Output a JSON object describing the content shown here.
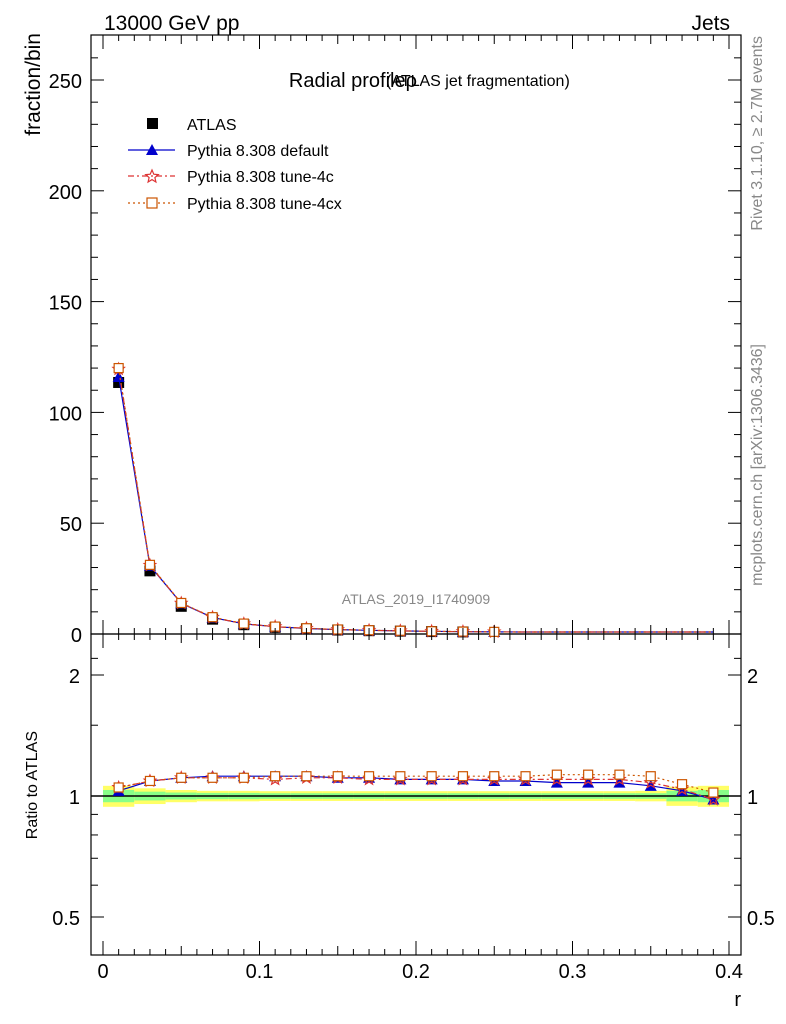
{
  "header": {
    "left": "13000 GeV pp",
    "right": "Jets"
  },
  "side": {
    "rivet": "Rivet 3.1.10, ≥ 2.7M events",
    "mcplots": "mcplots.cern.ch [arXiv:1306.3436]"
  },
  "chart_data": [
    {
      "type": "line",
      "title": "Radial profileρ",
      "subtitle": "(ATLAS jet fragmentation)",
      "watermark": "ATLAS_2019_I1740909",
      "xlabel": "",
      "ylabel": "fraction/bin",
      "xlim": [
        0,
        0.4
      ],
      "ylim": [
        0,
        270
      ],
      "yticks": [
        "0",
        "50",
        "100",
        "150",
        "200",
        "250"
      ],
      "legend_position": "top-left",
      "x": [
        0.01,
        0.03,
        0.05,
        0.07,
        0.09,
        0.11,
        0.13,
        0.15,
        0.17,
        0.19,
        0.21,
        0.23,
        0.25,
        0.27,
        0.29,
        0.31,
        0.33,
        0.35,
        0.37,
        0.39
      ],
      "series": [
        {
          "name": "ATLAS",
          "color": "#000000",
          "marker": "square-filled",
          "values": [
            113.5,
            28.5,
            12.5,
            6.7,
            4.2,
            3.0,
            2.3,
            1.8,
            1.5,
            1.3,
            1.1,
            0.95,
            0.85,
            0.75,
            0.67,
            0.6,
            0.55,
            0.5,
            0.45,
            0.4
          ]
        },
        {
          "name": "Pythia 8.308 default",
          "color": "#0000cc",
          "marker": "triangle",
          "dash": "",
          "values": [
            116,
            30.8,
            13.8,
            7.4,
            4.6,
            3.3,
            2.5,
            2.0,
            1.65,
            1.42,
            1.2,
            1.04,
            0.93,
            0.82,
            0.73,
            0.66,
            0.6,
            0.54,
            0.47,
            0.39
          ]
        },
        {
          "name": "Pythia 8.308 tune-4c",
          "color": "#dd3333",
          "marker": "star",
          "dash": "6,3,2,3",
          "values": [
            119.5,
            31.0,
            13.9,
            7.5,
            4.6,
            3.3,
            2.55,
            2.0,
            1.65,
            1.42,
            1.21,
            1.05,
            0.94,
            0.83,
            0.74,
            0.67,
            0.61,
            0.55,
            0.47,
            0.39
          ]
        },
        {
          "name": "Pythia 8.308 tune-4cx",
          "color": "#cc5500",
          "marker": "square-open",
          "dash": "2,3",
          "values": [
            120,
            31.2,
            14.0,
            7.6,
            4.7,
            3.35,
            2.6,
            2.05,
            1.7,
            1.46,
            1.24,
            1.08,
            0.96,
            0.85,
            0.77,
            0.69,
            0.63,
            0.57,
            0.5,
            0.41
          ]
        }
      ]
    },
    {
      "type": "line",
      "title": "",
      "xlabel": "r",
      "ylabel": "Ratio to ATLAS",
      "xlim": [
        0,
        0.4
      ],
      "ylim": [
        0.3,
        2.3
      ],
      "xticks": [
        "0",
        "0.1",
        "0.2",
        "0.3",
        "0.4"
      ],
      "yticks": [
        "0.5",
        "1",
        "2"
      ],
      "x": [
        0.01,
        0.03,
        0.05,
        0.07,
        0.09,
        0.11,
        0.13,
        0.15,
        0.17,
        0.19,
        0.21,
        0.23,
        0.25,
        0.27,
        0.29,
        0.31,
        0.33,
        0.35,
        0.37,
        0.39
      ],
      "band_green": [
        0.035,
        0.025,
        0.02,
        0.018,
        0.018,
        0.016,
        0.016,
        0.016,
        0.016,
        0.016,
        0.016,
        0.016,
        0.016,
        0.016,
        0.016,
        0.016,
        0.016,
        0.016,
        0.03,
        0.035
      ],
      "band_yellow": [
        0.06,
        0.045,
        0.035,
        0.03,
        0.03,
        0.028,
        0.028,
        0.028,
        0.028,
        0.028,
        0.028,
        0.028,
        0.028,
        0.028,
        0.028,
        0.028,
        0.028,
        0.03,
        0.055,
        0.06
      ],
      "series": [
        {
          "name": "Pythia 8.308 default",
          "color": "#0000cc",
          "marker": "triangle",
          "dash": "",
          "values": [
            1.03,
            1.09,
            1.11,
            1.12,
            1.12,
            1.12,
            1.12,
            1.11,
            1.11,
            1.1,
            1.1,
            1.1,
            1.09,
            1.09,
            1.08,
            1.08,
            1.08,
            1.06,
            1.03,
            0.98
          ]
        },
        {
          "name": "Pythia 8.308 tune-4c",
          "color": "#dd3333",
          "marker": "star",
          "dash": "6,3,2,3",
          "values": [
            1.05,
            1.09,
            1.11,
            1.11,
            1.11,
            1.1,
            1.11,
            1.11,
            1.1,
            1.1,
            1.1,
            1.1,
            1.1,
            1.1,
            1.1,
            1.1,
            1.1,
            1.08,
            1.04,
            0.98
          ]
        },
        {
          "name": "Pythia 8.308 tune-4cx",
          "color": "#cc5500",
          "marker": "square-open",
          "dash": "2,3",
          "values": [
            1.05,
            1.09,
            1.11,
            1.11,
            1.11,
            1.12,
            1.12,
            1.12,
            1.12,
            1.12,
            1.12,
            1.12,
            1.12,
            1.12,
            1.13,
            1.13,
            1.13,
            1.12,
            1.07,
            1.02
          ]
        }
      ]
    }
  ]
}
